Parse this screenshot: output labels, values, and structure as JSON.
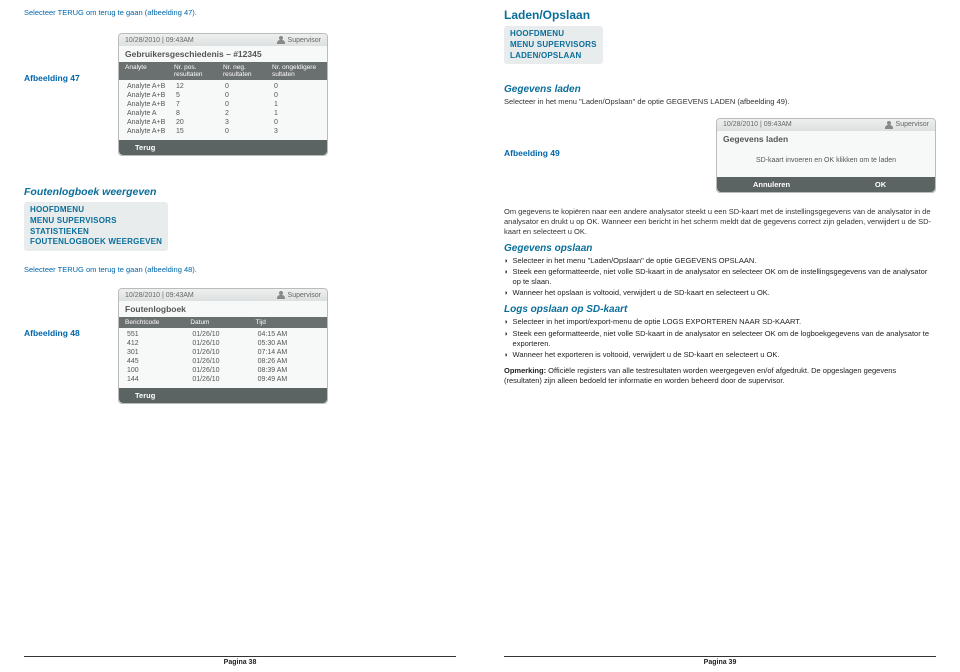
{
  "left": {
    "top_text": "Selecteer TERUG om terug te gaan (afbeelding 47).",
    "fig47_label": "Afbeelding 47",
    "panel47": {
      "timestamp": "10/28/2010 | 09:43AM",
      "supervisor": "Supervisor",
      "title": "Gebruikersgeschiedenis – #12345",
      "cols": [
        "Analyte",
        "Nr. pos. resultaten",
        "Nr. neg. resultaten",
        "Nr. ongeldigere sultaten"
      ],
      "rows": [
        [
          "Analyte A+B",
          "12",
          "0",
          "0"
        ],
        [
          "Analyte A+B",
          "5",
          "0",
          "0"
        ],
        [
          "Analyte A+B",
          "7",
          "0",
          "1"
        ],
        [
          "Analyte A",
          "8",
          "2",
          "1"
        ],
        [
          "Analyte A+B",
          "20",
          "3",
          "0"
        ],
        [
          "Analyte A+B",
          "15",
          "0",
          "3"
        ]
      ],
      "back": "Terug"
    },
    "section_title": "Foutenlogboek weergeven",
    "menu": [
      "HOOFDMENU",
      "MENU SUPERVISORS",
      "STATISTIEKEN",
      "FOUTENLOGBOEK WEERGEVEN"
    ],
    "mid_text": "Selecteer TERUG om terug te gaan (afbeelding 48).",
    "fig48_label": "Afbeelding 48",
    "panel48": {
      "timestamp": "10/28/2010 | 09:43AM",
      "supervisor": "Supervisor",
      "title": "Foutenlogboek",
      "cols": [
        "Berichtcode",
        "Datum",
        "Tijd"
      ],
      "rows": [
        [
          "551",
          "01/26/10",
          "04:15 AM"
        ],
        [
          "412",
          "01/26/10",
          "05:30 AM"
        ],
        [
          "301",
          "01/26/10",
          "07:14 AM"
        ],
        [
          "445",
          "01/26/10",
          "08:26 AM"
        ],
        [
          "100",
          "01/26/10",
          "08:39 AM"
        ],
        [
          "144",
          "01/26/10",
          "09:49 AM"
        ]
      ],
      "back": "Terug"
    },
    "footer": "Pagina 38"
  },
  "right": {
    "h2": "Laden/Opslaan",
    "menu": [
      "HOOFDMENU",
      "MENU SUPERVISORS",
      "LADEN/OPSLAAN"
    ],
    "sec1_title": "Gegevens laden",
    "sec1_text": "Selecteer in het menu \"Laden/Opslaan\" de optie GEGEVENS LADEN (afbeelding 49).",
    "panel49": {
      "timestamp": "10/28/2010 | 09:43AM",
      "supervisor": "Supervisor",
      "title": "Gegevens laden",
      "body": "SD-kaart invoeren en OK klikken om te laden",
      "cancel": "Annuleren",
      "ok": "OK"
    },
    "fig49_label": "Afbeelding 49",
    "para1": "Om gegevens te kopiëren naar een andere analysator steekt u een SD-kaart met de instellingsgegevens van de analysator in de analysator en drukt u op OK. Wanneer een bericht in het scherm meldt dat de gegevens correct zijn geladen, verwijdert u de SD-kaart en selecteert u OK.",
    "sec2_title": "Gegevens opslaan",
    "sec2_b1": "Selecteer in het menu \"Laden/Opslaan\" de optie GEGEVENS OPSLAAN.",
    "sec2_b2": "Steek een geformatteerde, niet volle SD-kaart in de analysator en selecteer OK om de instellingsgegevens van de analysator op te slaan.",
    "sec2_b3": "Wanneer het opslaan is voltooid, verwijdert u de SD-kaart en selecteert u OK.",
    "sec3_title": "Logs opslaan op SD-kaart",
    "sec3_b1": "Selecteer in het import/export-menu de optie LOGS EXPORTEREN NAAR SD-KAART.",
    "sec3_b2": "Steek een geformatteerde, niet volle SD-kaart in de analysator en selecteer OK om de logboekgegevens van de analysator te exporteren.",
    "sec3_b3": "Wanneer het exporteren is voltooid, verwijdert u de SD-kaart en selecteert u OK.",
    "note_label": "Opmerking:",
    "note_text": " Officiële registers van alle testresultaten worden weergegeven en/of afgedrukt. De opgeslagen gegevens (resultaten) zijn alleen bedoeld ter informatie en worden beheerd door de supervisor.",
    "footer": "Pagina 39"
  },
  "colors": {
    "accent": "#0a6e9a",
    "panel_head": "#6a6f6f"
  }
}
